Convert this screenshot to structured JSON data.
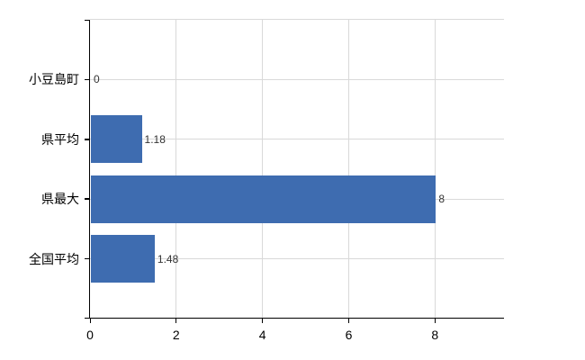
{
  "chart_data": {
    "type": "bar",
    "orientation": "horizontal",
    "title": "",
    "xlabel": "",
    "ylabel": "",
    "categories": [
      "小豆島町",
      "県平均",
      "県最大",
      "全国平均"
    ],
    "values": [
      0,
      1.18,
      8,
      1.48
    ],
    "value_labels": [
      "0",
      "1.18",
      "8",
      "1.48"
    ],
    "x_ticks": [
      0,
      2,
      4,
      6,
      8
    ],
    "x_tick_labels": [
      "0",
      "2",
      "4",
      "6",
      "8"
    ],
    "xlim": [
      0,
      9.6
    ],
    "grid": true,
    "legend_position": "none",
    "colors": {
      "bar": "#3e6cb0",
      "grid": "#d9d9d9",
      "axis": "#000000",
      "category_label": "#000000",
      "tick_label": "#000000",
      "value_label": "#333333",
      "background": "#ffffff"
    }
  }
}
